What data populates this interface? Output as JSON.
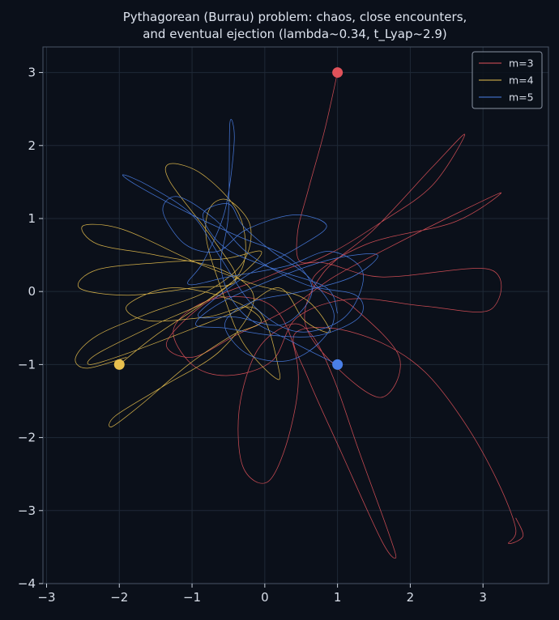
{
  "chart_data": {
    "type": "line",
    "title_lines": [
      "Pythagorean (Burrau) problem: chaos, close encounters,",
      "and eventual ejection  (lambda~0.34, t_Lyap~2.9)"
    ],
    "xlim": [
      -3.05,
      3.9
    ],
    "ylim": [
      -4.0,
      3.35
    ],
    "xticks": [
      -3,
      -2,
      -1,
      0,
      1,
      2,
      3
    ],
    "yticks": [
      -4,
      -3,
      -2,
      -1,
      0,
      1,
      2,
      3
    ],
    "grid": true,
    "legend_position": "top-right",
    "series": [
      {
        "name": "m=3",
        "color": "#e0525a",
        "start": [
          1,
          3
        ],
        "points": [
          [
            1,
            3
          ],
          [
            0.82,
            2.2
          ],
          [
            0.6,
            1.4
          ],
          [
            0.45,
            0.8
          ],
          [
            0.5,
            0.4
          ],
          [
            0.95,
            0.55
          ],
          [
            1.6,
            0.95
          ],
          [
            2.3,
            1.45
          ],
          [
            2.75,
            2.15
          ],
          [
            2.3,
            1.7
          ],
          [
            1.5,
            0.85
          ],
          [
            0.8,
            0.25
          ],
          [
            0.55,
            -0.4
          ],
          [
            0.95,
            -1.0
          ],
          [
            1.6,
            -1.45
          ],
          [
            1.85,
            -0.9
          ],
          [
            1.2,
            -0.2
          ],
          [
            0.65,
            0.15
          ],
          [
            1.4,
            0.65
          ],
          [
            2.6,
            0.95
          ],
          [
            3.25,
            1.35
          ],
          [
            2.7,
            1.1
          ],
          [
            1.7,
            0.6
          ],
          [
            0.95,
            0.2
          ],
          [
            0.3,
            -0.25
          ],
          [
            -0.4,
            -0.6
          ],
          [
            -1.0,
            -0.9
          ],
          [
            -1.35,
            -0.7
          ],
          [
            -0.8,
            -0.15
          ],
          [
            -0.1,
            0.15
          ],
          [
            0.7,
            0.4
          ],
          [
            1.6,
            0.2
          ],
          [
            3.1,
            0.3
          ],
          [
            3.1,
            -0.25
          ],
          [
            2.2,
            -0.2
          ],
          [
            1.2,
            -0.1
          ],
          [
            0.45,
            -0.35
          ],
          [
            0.1,
            -0.95
          ],
          [
            -0.5,
            -1.15
          ],
          [
            -1.0,
            -1.0
          ],
          [
            -1.25,
            -0.5
          ],
          [
            -0.7,
            -0.1
          ],
          [
            0.1,
            -0.2
          ],
          [
            0.45,
            -1.0
          ],
          [
            0.35,
            -1.9
          ],
          [
            0.05,
            -2.6
          ],
          [
            -0.3,
            -2.4
          ],
          [
            -0.35,
            -1.6
          ],
          [
            -0.1,
            -0.8
          ],
          [
            0.35,
            -0.45
          ],
          [
            0.65,
            -0.6
          ],
          [
            0.95,
            -1.2
          ],
          [
            1.3,
            -2.2
          ],
          [
            1.7,
            -3.3
          ],
          [
            1.8,
            -3.65
          ],
          [
            1.6,
            -3.4
          ],
          [
            1.05,
            -2.2
          ],
          [
            0.6,
            -1.2
          ],
          [
            0.4,
            -0.6
          ],
          [
            0.9,
            -0.5
          ],
          [
            1.6,
            -0.7
          ],
          [
            2.2,
            -1.1
          ],
          [
            2.75,
            -1.8
          ],
          [
            3.2,
            -2.6
          ],
          [
            3.45,
            -3.25
          ],
          [
            3.35,
            -3.45
          ],
          [
            3.55,
            -3.35
          ],
          [
            3.45,
            -3.1
          ]
        ]
      },
      {
        "name": "m=4",
        "color": "#e8c04e",
        "start": [
          -2,
          -1
        ],
        "points": [
          [
            -2,
            -1
          ],
          [
            -1.5,
            -0.6
          ],
          [
            -0.9,
            -0.2
          ],
          [
            -0.3,
            0.25
          ],
          [
            -0.05,
            0.55
          ],
          [
            -0.55,
            0.45
          ],
          [
            -1.4,
            0.4
          ],
          [
            -2.3,
            0.3
          ],
          [
            -2.55,
            0.05
          ],
          [
            -1.9,
            -0.05
          ],
          [
            -1.0,
            0.05
          ],
          [
            -0.4,
            0.15
          ],
          [
            -0.7,
            0.7
          ],
          [
            -1.3,
            1.5
          ],
          [
            -1.3,
            1.75
          ],
          [
            -0.85,
            1.6
          ],
          [
            -0.35,
            1.05
          ],
          [
            -0.3,
            0.35
          ],
          [
            -0.75,
            -0.1
          ],
          [
            -1.5,
            -0.45
          ],
          [
            -2.3,
            -0.85
          ],
          [
            -2.4,
            -1.0
          ],
          [
            -1.9,
            -0.85
          ],
          [
            -1.1,
            -0.55
          ],
          [
            -0.35,
            -0.25
          ],
          [
            0.2,
            0.05
          ],
          [
            0.55,
            -0.4
          ],
          [
            0.9,
            -0.55
          ],
          [
            0.55,
            -0.1
          ],
          [
            -0.15,
            0.1
          ],
          [
            -0.95,
            0.4
          ],
          [
            -1.95,
            0.85
          ],
          [
            -2.5,
            0.9
          ],
          [
            -2.3,
            0.65
          ],
          [
            -1.5,
            0.5
          ],
          [
            -0.6,
            0.3
          ],
          [
            -0.15,
            -0.1
          ],
          [
            -0.6,
            -0.8
          ],
          [
            -1.4,
            -1.3
          ],
          [
            -2.05,
            -1.7
          ],
          [
            -2.1,
            -1.85
          ],
          [
            -1.7,
            -1.55
          ],
          [
            -1.05,
            -1.0
          ],
          [
            -0.45,
            -0.6
          ],
          [
            -0.05,
            -0.4
          ],
          [
            -0.5,
            -0.1
          ],
          [
            -1.3,
            0.05
          ],
          [
            -1.9,
            -0.2
          ],
          [
            -1.6,
            -0.4
          ],
          [
            -0.8,
            -0.35
          ],
          [
            -0.1,
            -0.25
          ],
          [
            0.2,
            -1.1
          ],
          [
            0.1,
            -1.15
          ],
          [
            -0.3,
            -0.7
          ],
          [
            -0.55,
            -0.1
          ],
          [
            -0.8,
            0.7
          ],
          [
            -0.75,
            1.15
          ],
          [
            -0.5,
            1.25
          ],
          [
            -0.2,
            0.9
          ],
          [
            -0.3,
            0.4
          ],
          [
            -0.8,
            0.0
          ],
          [
            -1.6,
            -0.3
          ],
          [
            -2.3,
            -0.6
          ],
          [
            -2.6,
            -0.9
          ],
          [
            -2.45,
            -1.05
          ],
          [
            -1.9,
            -0.9
          ]
        ]
      },
      {
        "name": "m=5",
        "color": "#4a7fe8",
        "start": [
          1,
          -1
        ],
        "points": [
          [
            1,
            -1
          ],
          [
            0.4,
            -0.7
          ],
          [
            -0.3,
            -0.3
          ],
          [
            -0.6,
            0.3
          ],
          [
            -0.5,
            1.05
          ],
          [
            -0.48,
            2.3
          ],
          [
            -0.42,
            2.05
          ],
          [
            -0.55,
            1.1
          ],
          [
            -0.85,
            0.4
          ],
          [
            -1.05,
            0.1
          ],
          [
            -0.5,
            0.2
          ],
          [
            0.3,
            0.35
          ],
          [
            0.9,
            0.55
          ],
          [
            1.35,
            0.25
          ],
          [
            1.1,
            -0.35
          ],
          [
            0.45,
            -0.55
          ],
          [
            -0.15,
            -0.2
          ],
          [
            -0.6,
            0.45
          ],
          [
            -1.0,
            1.05
          ],
          [
            -1.6,
            1.45
          ],
          [
            -1.95,
            1.6
          ],
          [
            -1.75,
            1.45
          ],
          [
            -1.0,
            1.05
          ],
          [
            -0.35,
            0.75
          ],
          [
            0.35,
            0.45
          ],
          [
            0.65,
            0.0
          ],
          [
            0.25,
            -0.45
          ],
          [
            -0.4,
            -0.35
          ],
          [
            -0.9,
            -0.35
          ],
          [
            -0.75,
            -0.15
          ],
          [
            -0.2,
            0.25
          ],
          [
            0.45,
            0.6
          ],
          [
            0.85,
            0.9
          ],
          [
            0.4,
            1.05
          ],
          [
            -0.25,
            0.85
          ],
          [
            -0.65,
            0.55
          ],
          [
            -1.1,
            0.65
          ],
          [
            -1.4,
            1.1
          ],
          [
            -1.2,
            1.3
          ],
          [
            -0.7,
            1.0
          ],
          [
            -0.2,
            0.5
          ],
          [
            0.55,
            0.1
          ],
          [
            1.25,
            -0.05
          ],
          [
            1.3,
            -0.35
          ],
          [
            0.75,
            -0.6
          ],
          [
            0.1,
            -0.6
          ],
          [
            -0.55,
            -0.5
          ],
          [
            -0.95,
            -0.45
          ],
          [
            -0.6,
            -0.15
          ],
          [
            0.2,
            0.2
          ],
          [
            0.95,
            0.45
          ],
          [
            1.55,
            0.5
          ],
          [
            1.2,
            0.2
          ],
          [
            0.5,
            0.0
          ],
          [
            -0.2,
            -0.15
          ],
          [
            -0.55,
            -0.45
          ],
          [
            -0.25,
            -0.85
          ],
          [
            0.3,
            -0.95
          ],
          [
            0.75,
            -0.7
          ],
          [
            0.95,
            -0.3
          ],
          [
            0.6,
            0.2
          ],
          [
            0.1,
            0.55
          ],
          [
            -0.3,
            0.9
          ],
          [
            -0.5,
            1.2
          ],
          [
            -0.85,
            1.05
          ],
          [
            -0.55,
            0.6
          ],
          [
            0.15,
            0.3
          ],
          [
            0.85,
            0.05
          ],
          [
            1.0,
            -0.3
          ]
        ]
      }
    ]
  }
}
